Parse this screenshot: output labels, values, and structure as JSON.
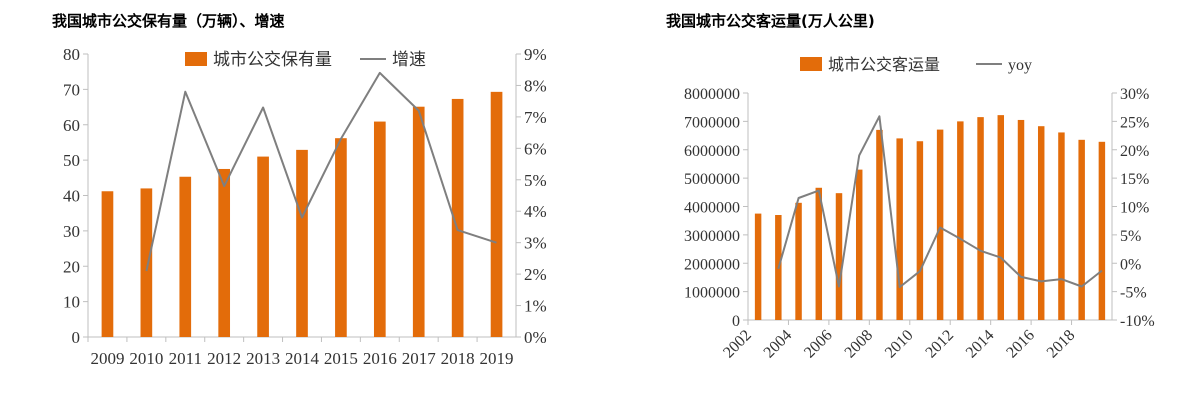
{
  "colors": {
    "bar": "#E36C0A",
    "line": "#7F7F7F",
    "axis": "#BFBFBF"
  },
  "chart_data": [
    {
      "type": "bar",
      "title": "我国城市公交保有量（万辆）、增速",
      "legend_placement": "top",
      "categories": [
        "2009",
        "2010",
        "2011",
        "2012",
        "2013",
        "2014",
        "2015",
        "2016",
        "2017",
        "2018",
        "2019"
      ],
      "series": [
        {
          "name": "城市公交保有量",
          "type": "bar",
          "axis": "left",
          "values": [
            41.2,
            42.0,
            45.3,
            47.5,
            51.0,
            52.9,
            56.2,
            60.9,
            65.1,
            67.3,
            69.3
          ]
        },
        {
          "name": "增速",
          "type": "line",
          "axis": "right",
          "values": [
            null,
            2.1,
            7.8,
            4.8,
            7.3,
            3.8,
            6.3,
            8.4,
            7.2,
            3.4,
            3.0
          ]
        }
      ],
      "ylim_left": [
        0,
        80
      ],
      "yticks_left": [
        "0",
        "10",
        "20",
        "30",
        "40",
        "50",
        "60",
        "70",
        "80"
      ],
      "ylim_right": [
        0,
        9
      ],
      "yticks_right": [
        "0%",
        "1%",
        "2%",
        "3%",
        "4%",
        "5%",
        "6%",
        "7%",
        "8%",
        "9%"
      ],
      "grid": false
    },
    {
      "type": "bar",
      "title": "我国城市公交客运量(万人公里)",
      "legend_placement": "top",
      "categories": [
        "2002",
        "2003",
        "2004",
        "2005",
        "2006",
        "2007",
        "2008",
        "2009",
        "2010",
        "2011",
        "2012",
        "2013",
        "2014",
        "2015",
        "2016",
        "2017",
        "2018",
        "2019"
      ],
      "xtick_labels": [
        "2002",
        "2004",
        "2006",
        "2008",
        "2010",
        "2012",
        "2014",
        "2016",
        "2018"
      ],
      "series": [
        {
          "name": "城市公交客运量",
          "type": "bar",
          "axis": "left",
          "values": [
            3750000,
            3700000,
            4130000,
            4660000,
            4470000,
            5300000,
            6700000,
            6400000,
            6300000,
            6710000,
            7000000,
            7150000,
            7220000,
            7050000,
            6830000,
            6610000,
            6350000,
            6280000
          ]
        },
        {
          "name": "yoy",
          "type": "line",
          "axis": "right",
          "values": [
            null,
            -1.0,
            11.5,
            12.8,
            -4.1,
            19.0,
            25.9,
            -4.2,
            -1.4,
            6.3,
            4.3,
            2.2,
            1.0,
            -2.4,
            -3.2,
            -2.8,
            -4.1,
            -1.3
          ]
        }
      ],
      "ylim_left": [
        0,
        8000000
      ],
      "yticks_left": [
        "0",
        "1000000",
        "2000000",
        "3000000",
        "4000000",
        "5000000",
        "6000000",
        "7000000",
        "8000000"
      ],
      "ylim_right": [
        -10,
        30
      ],
      "yticks_right": [
        "-10%",
        "-5%",
        "0%",
        "5%",
        "10%",
        "15%",
        "20%",
        "25%",
        "30%"
      ],
      "grid": false
    }
  ]
}
